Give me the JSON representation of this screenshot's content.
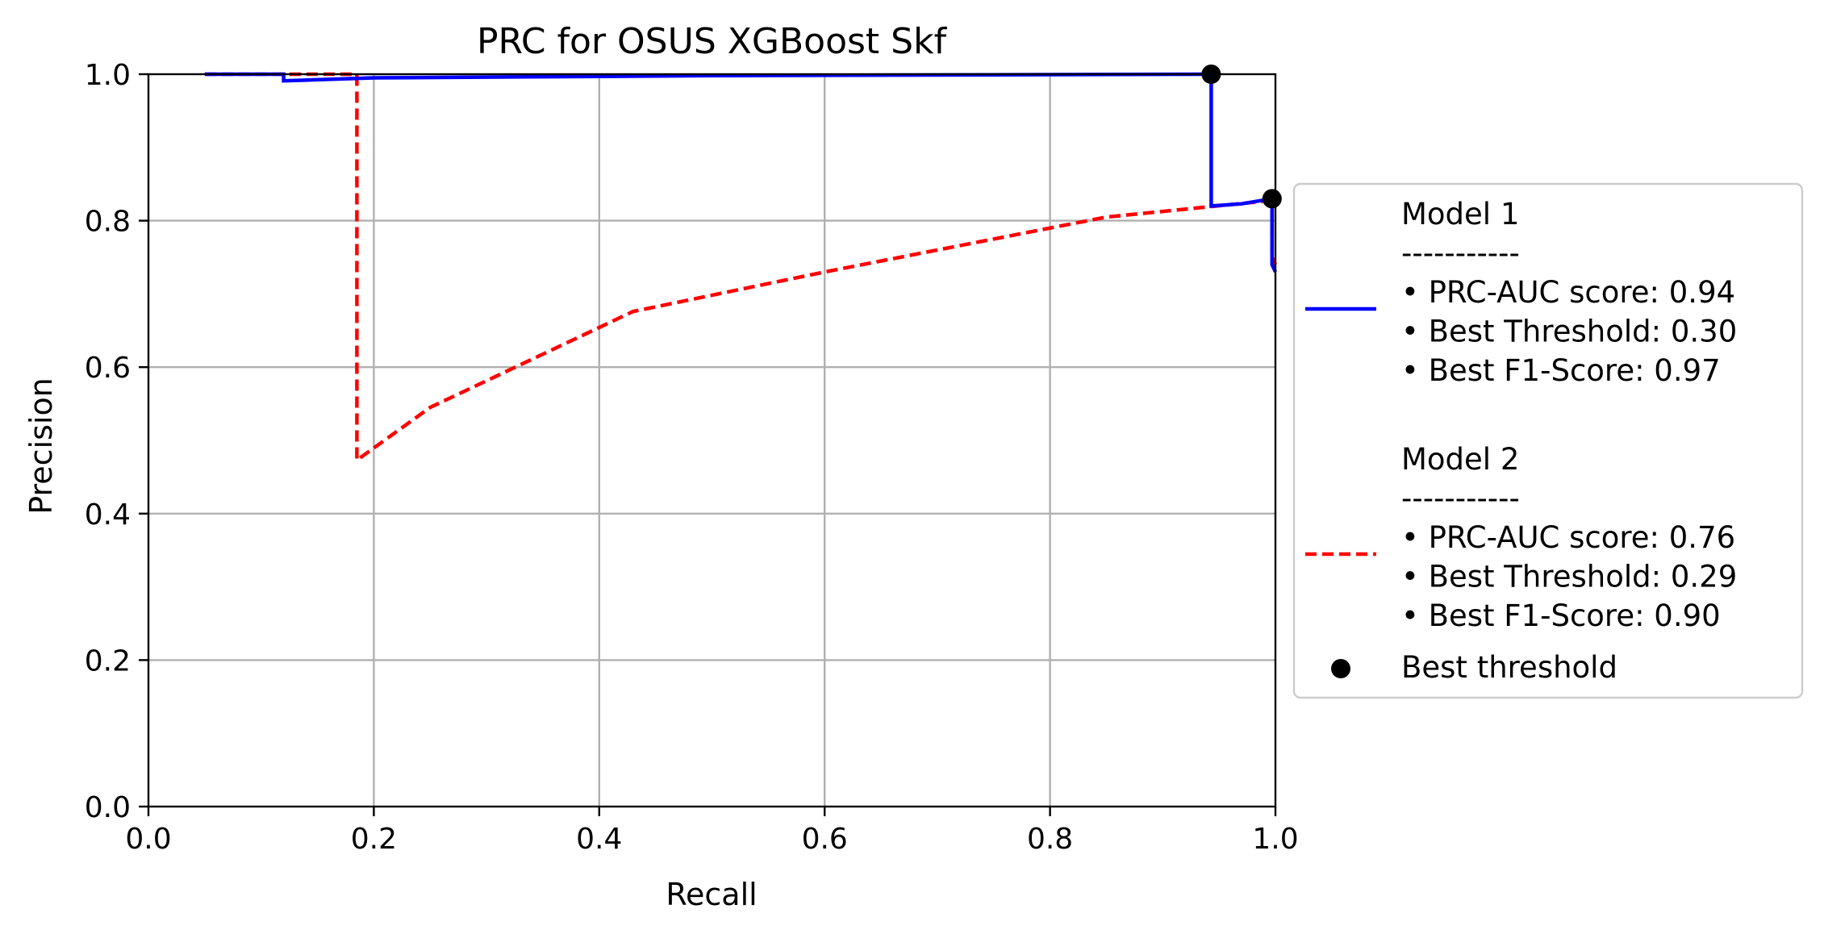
{
  "chart_data": {
    "type": "line",
    "title": "PRC for OSUS XGBoost Skf",
    "xlabel": "Recall",
    "ylabel": "Precision",
    "xlim": [
      0.0,
      1.0
    ],
    "ylim": [
      0.0,
      1.0
    ],
    "xticks": [
      "0.0",
      "0.2",
      "0.4",
      "0.6",
      "0.8",
      "1.0"
    ],
    "yticks": [
      "0.0",
      "0.2",
      "0.4",
      "0.6",
      "0.8",
      "1.0"
    ],
    "grid": true,
    "legend_placement": "center-right outside",
    "series": [
      {
        "name": "Model 1",
        "color": "#0000ff",
        "style": "solid",
        "points": [
          [
            0.05,
            1.0
          ],
          [
            0.12,
            1.0
          ],
          [
            0.12,
            0.991
          ],
          [
            0.2,
            0.995
          ],
          [
            0.5,
            0.998
          ],
          [
            0.94,
            1.0
          ],
          [
            0.943,
            1.0
          ],
          [
            0.943,
            0.82
          ],
          [
            0.97,
            0.823
          ],
          [
            0.997,
            0.83
          ],
          [
            0.997,
            0.74
          ],
          [
            1.0,
            0.73
          ]
        ],
        "legend_lines": [
          "Model 1",
          "-----------",
          " • PRC-AUC score: 0.94",
          " • Best Threshold: 0.30",
          " • Best F1-Score: 0.97"
        ]
      },
      {
        "name": "Model 2",
        "color": "#ff0000",
        "style": "dashed",
        "points": [
          [
            0.05,
            1.0
          ],
          [
            0.185,
            1.0
          ],
          [
            0.185,
            0.99
          ],
          [
            0.185,
            0.473
          ],
          [
            0.25,
            0.545
          ],
          [
            0.43,
            0.676
          ],
          [
            0.6,
            0.73
          ],
          [
            0.85,
            0.805
          ],
          [
            0.98,
            0.825
          ],
          [
            0.997,
            0.828
          ],
          [
            0.997,
            0.75
          ],
          [
            1.0,
            0.74
          ]
        ],
        "legend_lines": [
          "Model 2",
          "-----------",
          " • PRC-AUC score: 0.76",
          " • Best Threshold: 0.29",
          " • Best F1-Score: 0.90"
        ]
      }
    ],
    "best_threshold_points": [
      [
        0.943,
        1.0
      ],
      [
        0.997,
        0.83
      ]
    ],
    "best_threshold_label": "Best threshold"
  }
}
